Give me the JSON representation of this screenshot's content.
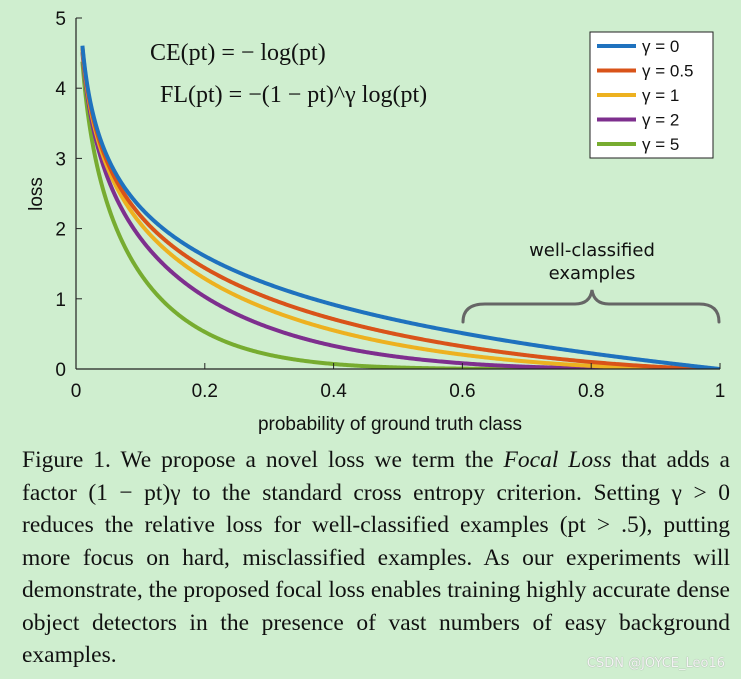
{
  "chart_data": {
    "type": "line",
    "xlabel": "probability of ground truth class",
    "ylabel": "loss",
    "xlim": [
      0,
      1
    ],
    "ylim": [
      0,
      5
    ],
    "xticks": [
      0,
      0.2,
      0.4,
      0.6,
      0.8,
      1
    ],
    "xtick_labels": [
      "0",
      "0.2",
      "0.4",
      "0.6",
      "0.8",
      "1"
    ],
    "yticks": [
      0,
      1,
      2,
      3,
      4,
      5
    ],
    "ytick_labels": [
      "0",
      "1",
      "2",
      "3",
      "4",
      "5"
    ],
    "grid": false,
    "legend_position": "top-right",
    "formula_ce": "CE(pt) = − log(pt)",
    "formula_fl": "FL(pt) = −(1 − pt)^γ log(pt)",
    "annotation": {
      "text_line1": "well-classified",
      "text_line2": "examples",
      "x_range": [
        0.6,
        1.0
      ]
    },
    "series": [
      {
        "name": "γ = 0",
        "gamma": 0,
        "color": "#1f72be"
      },
      {
        "name": "γ = 0.5",
        "gamma": 0.5,
        "color": "#d95319"
      },
      {
        "name": "γ = 1",
        "gamma": 1,
        "color": "#edb120"
      },
      {
        "name": "γ = 2",
        "gamma": 2,
        "color": "#7e2f8e"
      },
      {
        "name": "γ = 5",
        "gamma": 5,
        "color": "#77ac30"
      }
    ]
  },
  "caption": {
    "prefix": "Figure 1. We propose a novel loss we term the ",
    "term": "Focal Loss",
    "after_term": " that adds a factor ",
    "factor": "(1 − pt)γ",
    "body": " to the standard cross entropy criterion. Setting γ > 0 reduces the relative loss for well-classified examples (pt > .5), putting more focus on hard, misclassified examples. As our experiments will demonstrate, the proposed focal loss enables training highly accurate dense object detectors in the presence of vast numbers of easy background examples."
  },
  "watermark": "CSDN @JOYCE_Leo16"
}
